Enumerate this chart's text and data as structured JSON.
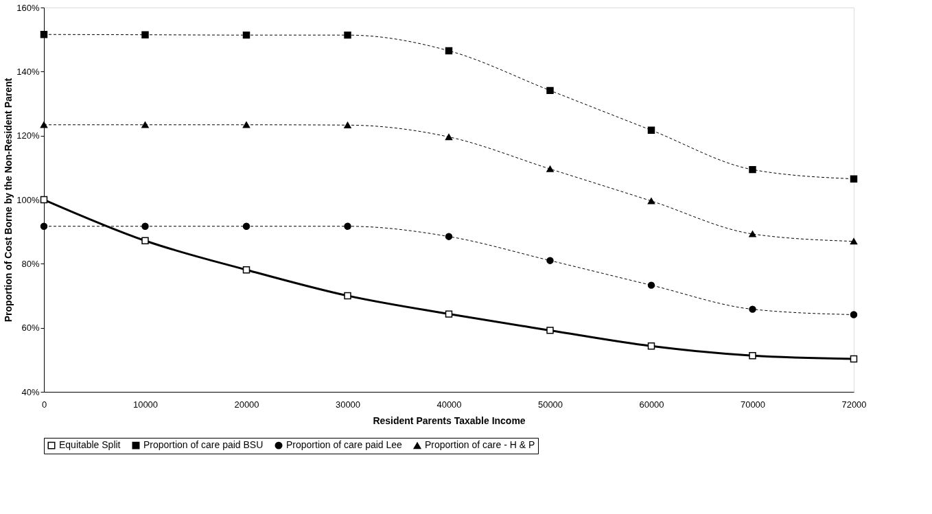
{
  "chart_data": {
    "type": "line",
    "xlabel": "Resident Parents Taxable Income",
    "ylabel": "Proportion of Cost Borne by the Non-Resident Parent",
    "categories": [
      "0",
      "10000",
      "20000",
      "30000",
      "40000",
      "50000",
      "60000",
      "70000",
      "72000"
    ],
    "ylim": [
      40,
      160
    ],
    "yticks": [
      {
        "value": 40,
        "label": "40%"
      },
      {
        "value": 60,
        "label": "60%"
      },
      {
        "value": 80,
        "label": "80%"
      },
      {
        "value": 100,
        "label": "100%"
      },
      {
        "value": 120,
        "label": "120%"
      },
      {
        "value": 140,
        "label": "140%"
      },
      {
        "value": 160,
        "label": "160%"
      }
    ],
    "grid": false,
    "legend": "bottom",
    "series": [
      {
        "name": "Equitable Split",
        "color": "#000000",
        "marker": "square",
        "line_style": "solid",
        "values": [
          100,
          87.2,
          78.1,
          70.0,
          64.3,
          59.2,
          54.3,
          51.3,
          50.3
        ]
      },
      {
        "name": "Proportion of care paid BSU",
        "color": "#000000",
        "marker": "square",
        "line_style": "dashed",
        "values": [
          151.6,
          151.5,
          151.4,
          151.4,
          146.5,
          134.1,
          121.7,
          109.4,
          106.5
        ]
      },
      {
        "name": "Proportion of care paid Lee",
        "color": "#000000",
        "marker": "circle",
        "line_style": "dashed",
        "values": [
          91.7,
          91.7,
          91.7,
          91.7,
          88.5,
          81.0,
          73.3,
          65.8,
          64.1
        ]
      },
      {
        "name": "Proportion of care - H & P",
        "color": "#000000",
        "marker": "triangle",
        "line_style": "dashed",
        "values": [
          123.4,
          123.4,
          123.4,
          123.3,
          119.6,
          109.6,
          99.6,
          89.3,
          87.0
        ]
      }
    ]
  }
}
